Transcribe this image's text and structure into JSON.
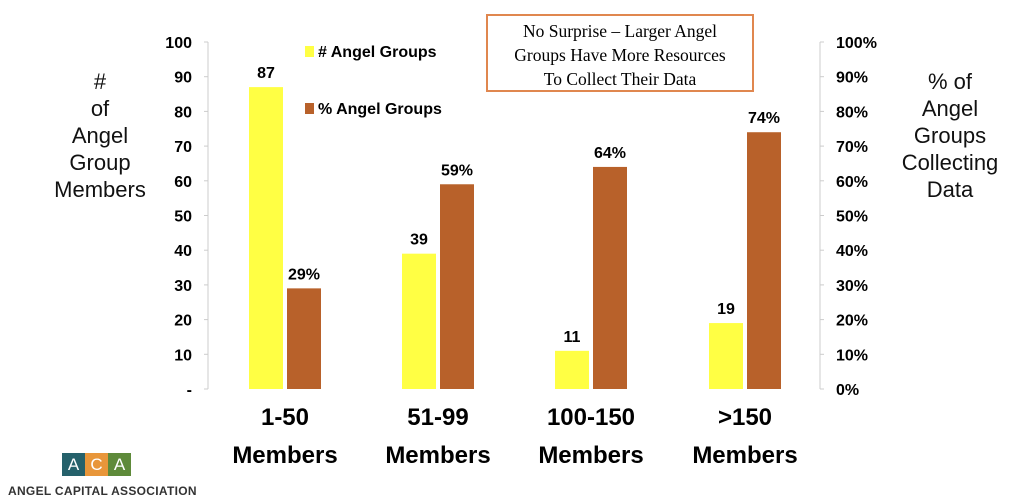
{
  "chart_data": {
    "type": "bar",
    "categories": [
      [
        "1-50",
        "Members"
      ],
      [
        "51-99",
        "Members"
      ],
      [
        "100-150",
        "Members"
      ],
      [
        ">150",
        "Members"
      ]
    ],
    "series": [
      {
        "name": "# Angel Groups",
        "axis": "left",
        "values": [
          87,
          39,
          11,
          19
        ],
        "labels": [
          "87",
          "39",
          "11",
          "19"
        ],
        "color": "#ffff44"
      },
      {
        "name": "% Angel Groups",
        "axis": "right",
        "values": [
          29,
          59,
          64,
          74
        ],
        "labels": [
          "29%",
          "59%",
          "64%",
          "74%"
        ],
        "color": "#b8612a"
      }
    ],
    "ylabel": [
      "#",
      "of",
      "Angel",
      "Group",
      "Members"
    ],
    "y2label": [
      "% of",
      "Angel",
      "Groups",
      "Collecting",
      "Data"
    ],
    "ylim": [
      0,
      100
    ],
    "y2lim": [
      0,
      100
    ],
    "yticks": [
      "-",
      "10",
      "20",
      "30",
      "40",
      "50",
      "60",
      "70",
      "80",
      "90",
      "100"
    ],
    "y2ticks": [
      "0%",
      "10%",
      "20%",
      "30%",
      "40%",
      "50%",
      "60%",
      "70%",
      "80%",
      "90%",
      "100%"
    ],
    "legend_position": "top-left",
    "annotation": [
      "No Surprise – Larger Angel",
      "Groups Have More Resources",
      "To Collect Their Data"
    ]
  },
  "logo": {
    "letters": [
      "A",
      "C",
      "A"
    ],
    "colors": [
      "#25616b",
      "#e8963a",
      "#5e8a3a"
    ],
    "org": "ANGEL CAPITAL ASSOCIATION"
  }
}
